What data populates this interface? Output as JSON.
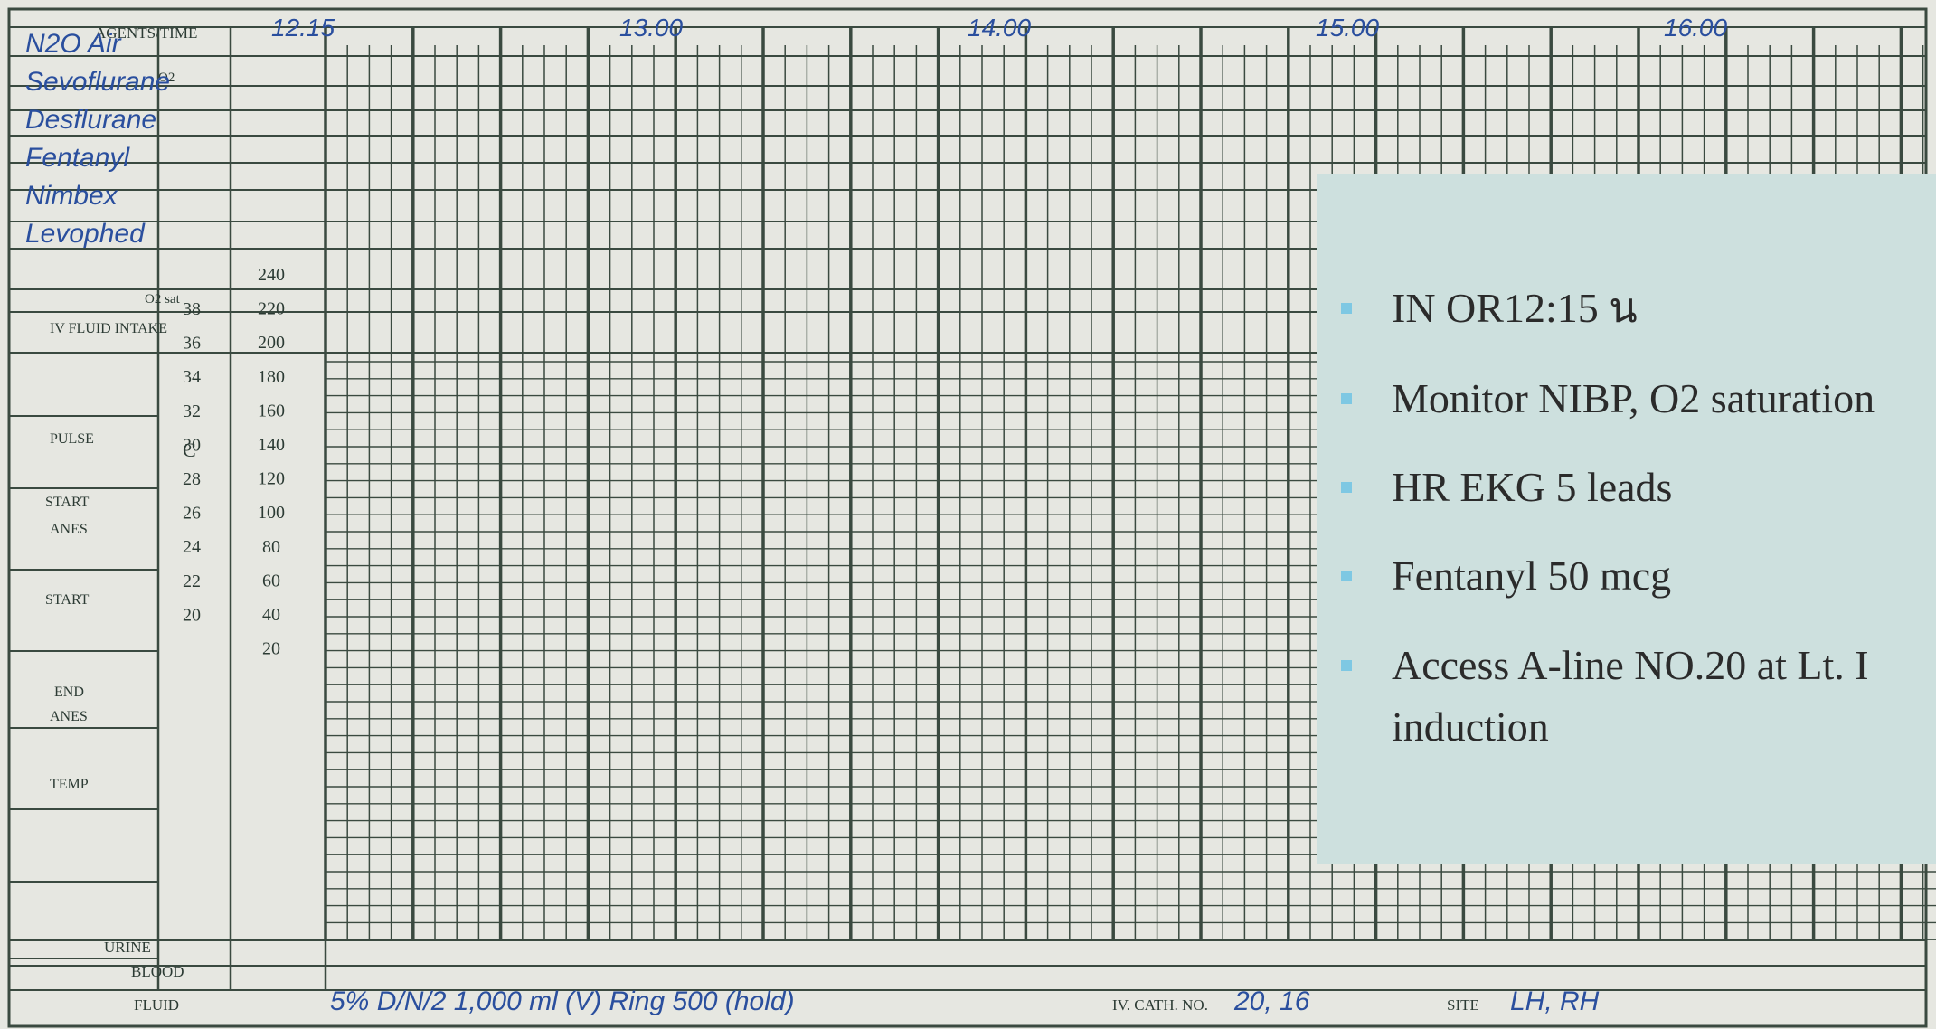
{
  "form": {
    "agents_time": "AGENTS/TIME",
    "o2": "O2",
    "o2_sat": "O2 sat",
    "iv_fluid_intake": "IV FLUID INTAKE",
    "pulse": "PULSE",
    "start_anes": [
      "START",
      "ANES"
    ],
    "start": "START",
    "end_anes": [
      "END",
      "ANES"
    ],
    "temp": "TEMP",
    "temp_unit": "C",
    "temp_scale": [
      38,
      36,
      34,
      32,
      30,
      28,
      26,
      24,
      22,
      20
    ],
    "main_scale": [
      240,
      220,
      200,
      180,
      160,
      140,
      120,
      100,
      80,
      60,
      40,
      20
    ],
    "urine": "URINE",
    "blood": "BLOOD",
    "fluid": "FLUID",
    "iv_cath": "IV. CATH. NO.",
    "site": "SITE",
    "times": [
      "12.15",
      "13.00",
      "14.00",
      "15.00",
      "16.00"
    ],
    "agents": [
      "N2O Air",
      "Sevoflurane",
      "Desflurane",
      "Fentanyl",
      "Nimbex",
      "Levophed"
    ],
    "fluid_note": "5% D/N/2 1,000 ml (V) Ring 500 (hold)",
    "cath_no": "20, 16",
    "site_value": "LH, RH"
  },
  "notes": {
    "items": [
      [
        "IN OR12:15 น"
      ],
      [
        "Monitor NIBP, O2 saturation"
      ],
      [
        "HR EKG 5 leads"
      ],
      [
        "Fentanyl 50 mcg"
      ],
      [
        "Access A-line NO.20 at Lt. I",
        "induction"
      ]
    ]
  }
}
